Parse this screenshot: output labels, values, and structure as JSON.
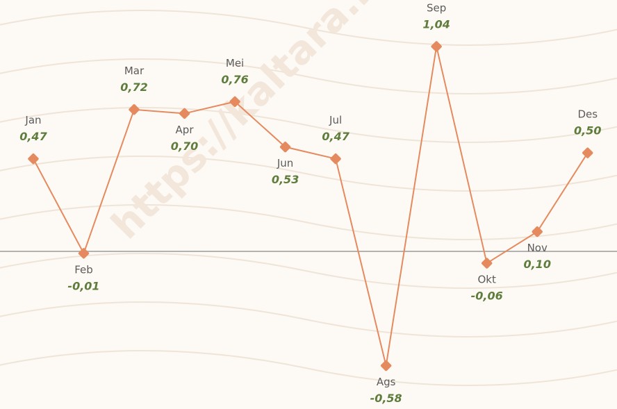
{
  "chart_data": {
    "type": "line",
    "watermark": "https://kaltara.bp",
    "categories": [
      "Jan",
      "Feb",
      "Mar",
      "Apr",
      "Mei",
      "Jun",
      "Jul",
      "Ags",
      "Sep",
      "Okt",
      "Nov",
      "Des"
    ],
    "series": [
      {
        "color": "#e58a5e",
        "values": [
          0.47,
          -0.01,
          0.72,
          0.7,
          0.76,
          0.53,
          0.47,
          -0.58,
          1.04,
          -0.06,
          0.1,
          0.5
        ],
        "value_labels": [
          "0,47",
          "-0,01",
          "0,72",
          "0,70",
          "0,76",
          "0,53",
          "0,47",
          "-0,58",
          "1,04",
          "-0,06",
          "0,10",
          "0,50"
        ]
      }
    ],
    "ylim": [
      -0.8,
      1.276
    ]
  }
}
